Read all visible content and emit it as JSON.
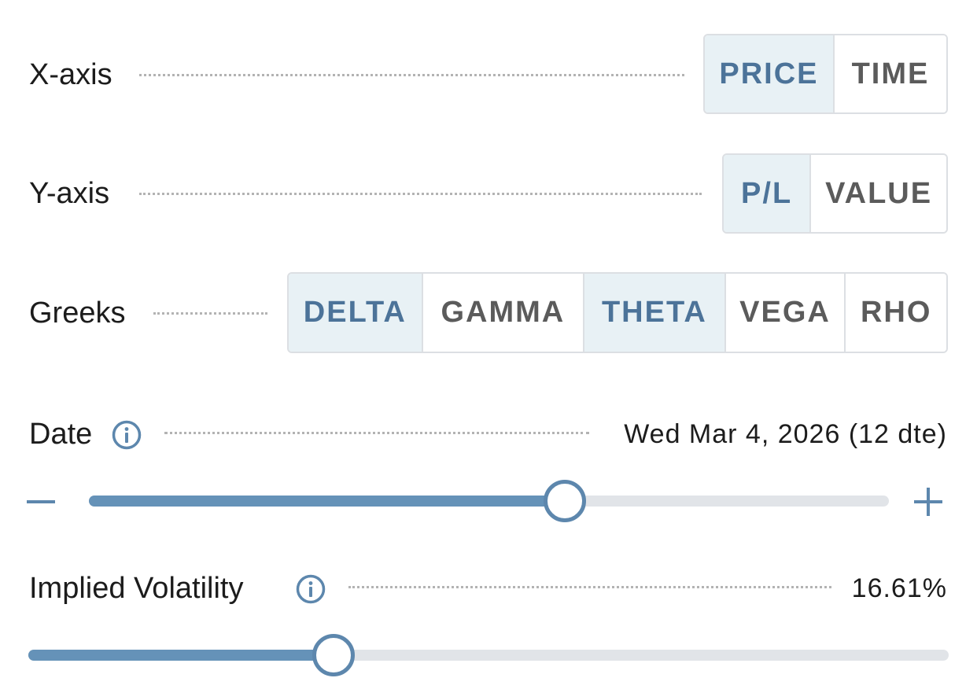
{
  "xaxis": {
    "label": "X-axis",
    "options": [
      {
        "label": "PRICE",
        "active": true
      },
      {
        "label": "TIME",
        "active": false
      }
    ]
  },
  "yaxis": {
    "label": "Y-axis",
    "options": [
      {
        "label": "P/L",
        "active": true
      },
      {
        "label": "VALUE",
        "active": false
      }
    ]
  },
  "greeks": {
    "label": "Greeks",
    "options": [
      {
        "label": "DELTA",
        "active": true
      },
      {
        "label": "GAMMA",
        "active": false
      },
      {
        "label": "THETA",
        "active": true
      },
      {
        "label": "VEGA",
        "active": false
      },
      {
        "label": "RHO",
        "active": false
      }
    ]
  },
  "date": {
    "label": "Date",
    "value": "Wed Mar 4, 2026 (12 dte)",
    "slider_fraction": 0.595,
    "icon": "info-icon",
    "decrement_icon": "minus-icon",
    "increment_icon": "plus-icon"
  },
  "iv": {
    "label": "Implied Volatility",
    "value": "16.61%",
    "slider_fraction": 0.332,
    "icon": "info-icon"
  },
  "colors": {
    "accent": "#5d87ad",
    "active_bg": "#e8f1f5",
    "active_text": "#4c7399",
    "track": "#e1e4e8",
    "fill": "#6592b8"
  }
}
